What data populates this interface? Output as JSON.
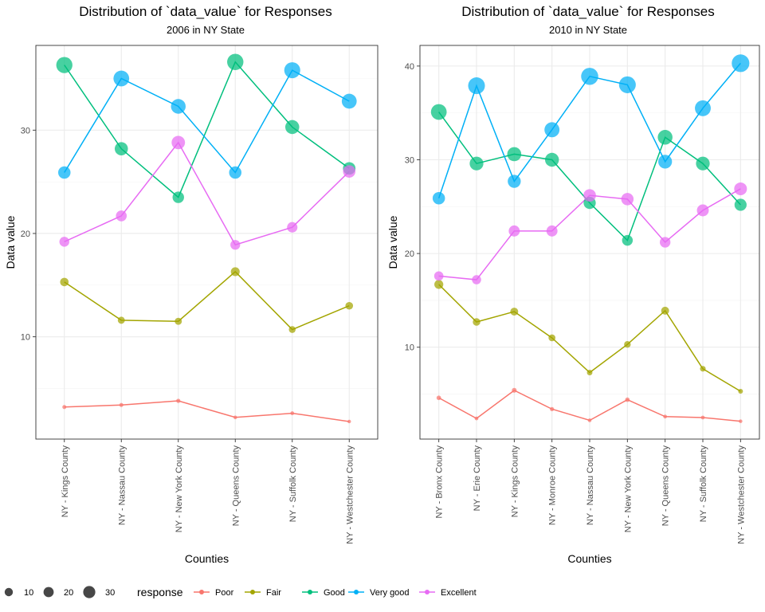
{
  "legend": {
    "size_title": "",
    "size_values": [
      10,
      20,
      30
    ],
    "color_title": "response",
    "items": [
      {
        "label": "Poor",
        "color": "#F8766D"
      },
      {
        "label": "Fair",
        "color": "#A3A500"
      },
      {
        "label": "Good",
        "color": "#00BF7D"
      },
      {
        "label": "Very good",
        "color": "#00B0F6"
      },
      {
        "label": "Excellent",
        "color": "#E76BF3"
      }
    ]
  },
  "chart_data": [
    {
      "type": "line",
      "title": "Distribution of `data_value` for Responses",
      "subtitle": "2006 in NY State",
      "xlabel": "Counties",
      "ylabel": "Data value",
      "ylim": [
        0.1,
        38.2
      ],
      "yticks": [
        10,
        20,
        30
      ],
      "categories": [
        "NY - Kings County",
        "NY - Nassau County",
        "NY - New York County",
        "NY - Queens County",
        "NY - Suffolk County",
        "NY - Westchester County"
      ],
      "series": [
        {
          "name": "Poor",
          "color": "#F8766D",
          "values": [
            3.2,
            3.4,
            3.8,
            2.2,
            2.6,
            1.8
          ]
        },
        {
          "name": "Fair",
          "color": "#A3A500",
          "values": [
            15.3,
            11.6,
            11.5,
            16.3,
            10.7,
            13.0
          ]
        },
        {
          "name": "Good",
          "color": "#00BF7D",
          "values": [
            36.3,
            28.2,
            23.5,
            36.6,
            30.3,
            26.3
          ]
        },
        {
          "name": "Very good",
          "color": "#00B0F6",
          "values": [
            25.9,
            35.0,
            32.3,
            25.9,
            35.8,
            32.8
          ]
        },
        {
          "name": "Excellent",
          "color": "#E76BF3",
          "values": [
            19.2,
            21.7,
            28.8,
            18.9,
            20.6,
            26.0
          ]
        }
      ],
      "grid": true,
      "legend_position": "bottom"
    },
    {
      "type": "line",
      "title": "Distribution of `data_value` for Responses",
      "subtitle": "2010 in NY State",
      "xlabel": "Counties",
      "ylabel": "Data value",
      "ylim": [
        0.2,
        42.2
      ],
      "yticks": [
        10,
        20,
        30,
        40
      ],
      "categories": [
        "NY - Bronx County",
        "NY - Erie County",
        "NY - Kings County",
        "NY - Monroe County",
        "NY - Nassau County",
        "NY - New York County",
        "NY - Queens County",
        "NY - Suffolk County",
        "NY - Westchester County"
      ],
      "series": [
        {
          "name": "Poor",
          "color": "#F8766D",
          "values": [
            4.6,
            2.4,
            5.4,
            3.4,
            2.2,
            4.4,
            2.6,
            2.5,
            2.1
          ]
        },
        {
          "name": "Fair",
          "color": "#A3A500",
          "values": [
            16.7,
            12.7,
            13.8,
            11.0,
            7.3,
            10.3,
            13.9,
            7.7,
            5.3
          ]
        },
        {
          "name": "Good",
          "color": "#00BF7D",
          "values": [
            35.1,
            29.6,
            30.6,
            30.0,
            25.4,
            21.4,
            32.4,
            29.6,
            25.2
          ]
        },
        {
          "name": "Very good",
          "color": "#00B0F6",
          "values": [
            25.9,
            37.9,
            27.7,
            33.2,
            38.9,
            38.0,
            29.8,
            35.5,
            40.3
          ]
        },
        {
          "name": "Excellent",
          "color": "#E76BF3",
          "values": [
            17.6,
            17.2,
            22.4,
            22.4,
            26.2,
            25.8,
            21.2,
            24.6,
            26.9
          ]
        }
      ],
      "grid": true,
      "legend_position": "bottom"
    }
  ]
}
